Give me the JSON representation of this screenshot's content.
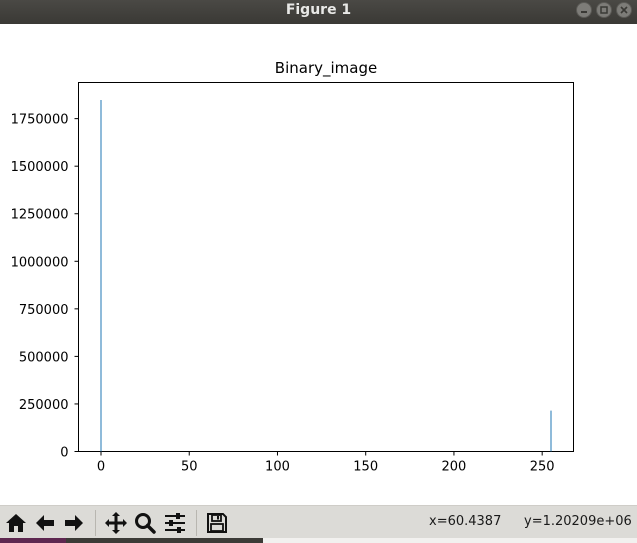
{
  "window": {
    "title": "Figure 1"
  },
  "chart_data": {
    "type": "bar",
    "title": "Binary_image",
    "xlabel": "",
    "ylabel": "",
    "xlim": [
      -12.75,
      267.75
    ],
    "ylim": [
      0,
      1940000
    ],
    "xticks": [
      0,
      50,
      100,
      150,
      200,
      250
    ],
    "xtick_labels": [
      "0",
      "50",
      "100",
      "150",
      "200",
      "250"
    ],
    "yticks": [
      0,
      250000,
      500000,
      750000,
      1000000,
      1250000,
      1500000,
      1750000
    ],
    "ytick_labels": [
      "0",
      "250000",
      "500000",
      "750000",
      "1000000",
      "1250000",
      "1500000",
      "1750000"
    ],
    "bars": [
      {
        "x": 0,
        "value": 1848000
      },
      {
        "x": 255,
        "value": 215000
      }
    ],
    "color": "#1f77b4",
    "grid": false
  },
  "toolbar": {
    "buttons": [
      {
        "name": "home-button",
        "icon": "home-icon"
      },
      {
        "name": "back-button",
        "icon": "back-arrow-icon"
      },
      {
        "name": "forward-button",
        "icon": "forward-arrow-icon"
      },
      {
        "name": "pan-button",
        "icon": "pan-icon"
      },
      {
        "name": "zoom-button",
        "icon": "zoom-icon"
      },
      {
        "name": "configure-subplots-button",
        "icon": "sliders-icon"
      },
      {
        "name": "save-button",
        "icon": "save-icon"
      }
    ],
    "x_readout": "x=60.4387",
    "y_readout": "y=1.20209e+06"
  }
}
